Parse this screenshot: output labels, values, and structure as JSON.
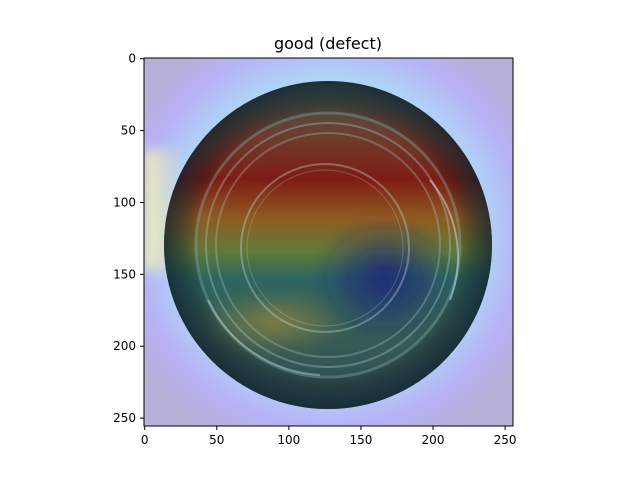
{
  "title": "good (defect)",
  "x_ticks": [
    "0",
    "50",
    "100",
    "150",
    "200",
    "250"
  ],
  "y_ticks": [
    "0",
    "50",
    "100",
    "150",
    "200",
    "250"
  ],
  "image": {
    "width": 256,
    "height": 256,
    "x_tick_values": [
      0,
      50,
      100,
      150,
      200,
      250
    ],
    "y_tick_values": [
      0,
      50,
      100,
      150,
      200,
      250
    ]
  },
  "colors": {
    "heatmap_low": "#b8b4f8",
    "heatmap_mid": "#b8f4f6",
    "heatmap_high": "#8a0f0f",
    "ring_dark": "#233f4f",
    "axis": "#000000"
  }
}
